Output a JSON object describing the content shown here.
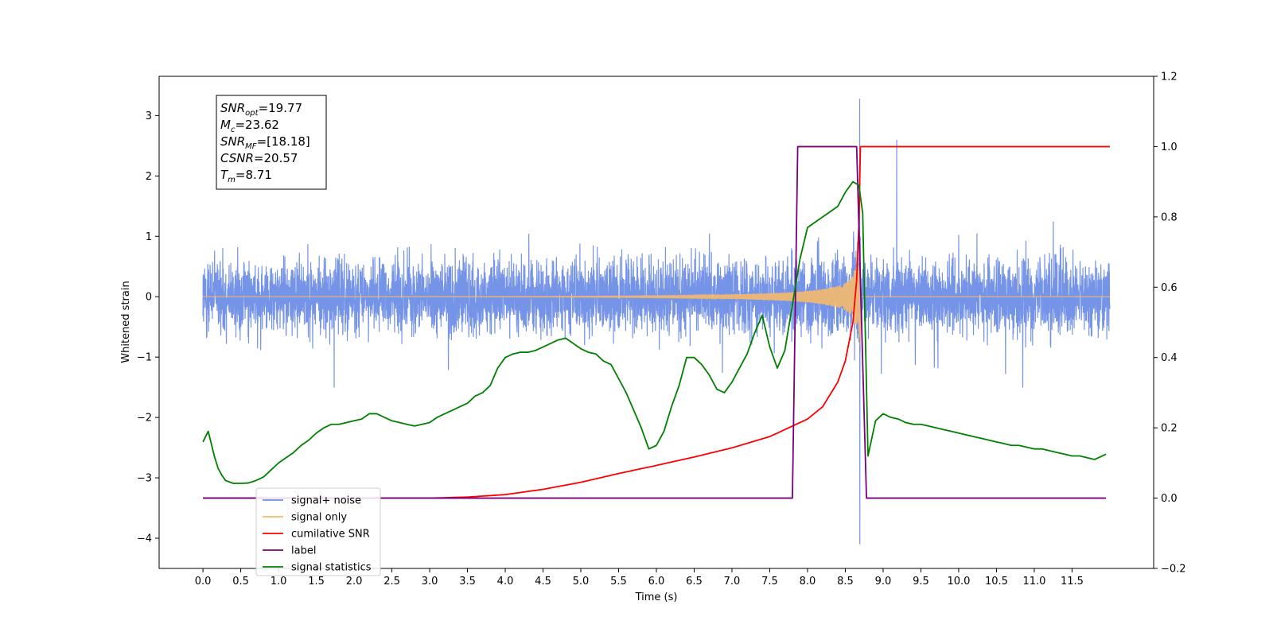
{
  "chart_data": {
    "type": "line",
    "title": "",
    "xlabel": "Time (s)",
    "ylabel": "Whitened strain",
    "xlim": [
      -0.58,
      12.58
    ],
    "ylim": [
      -4.5,
      3.65
    ],
    "y2lim": [
      -0.2,
      1.2
    ],
    "x_ticks": [
      "0.0",
      "0.5",
      "1.0",
      "1.5",
      "2.0",
      "2.5",
      "3.0",
      "3.5",
      "4.0",
      "4.5",
      "5.0",
      "5.5",
      "6.0",
      "6.5",
      "7.0",
      "7.5",
      "8.0",
      "8.5",
      "9.0",
      "9.5",
      "10.0",
      "10.5",
      "11.0",
      "11.5"
    ],
    "y_ticks": [
      "3",
      "2",
      "1",
      "0",
      "−1",
      "−2",
      "−3",
      "−4"
    ],
    "y2_ticks": [
      "1.2",
      "1.0",
      "0.8",
      "0.6",
      "0.4",
      "0.2",
      "0.0",
      "−0.2"
    ],
    "grid": false,
    "legend_position": "lower-left",
    "stats_box": [
      {
        "base": "SNR",
        "sub": "opt",
        "value": "=19.77"
      },
      {
        "base": "M",
        "sub": "c",
        "value": "=23.62"
      },
      {
        "base": "SNR",
        "sub": "MF",
        "value": "=[18.18]"
      },
      {
        "base": "CSNR",
        "sub": "",
        "value": "=20.57"
      },
      {
        "base": "T",
        "sub": "m",
        "value": "=8.71"
      }
    ],
    "series": [
      {
        "name": "signal+ noise",
        "axis": "left",
        "color": "#6f8ee6",
        "description_values": {
          "t_start": 0.0,
          "t_end": 12.0,
          "typical_range": [
            -1.2,
            1.4
          ],
          "max_spike": 3.28,
          "max_spike_t": 8.69,
          "min_spike": -4.1,
          "min_spike_t": 8.69,
          "extra_spike": 2.6,
          "extra_spike_t": 9.18
        }
      },
      {
        "name": "signal only",
        "axis": "left",
        "color": "#f5b96b",
        "description_values": {
          "t_start": 0.0,
          "t_end": 12.0,
          "merger_t": 8.7,
          "peak_amplitude": 1.55
        }
      },
      {
        "name": "cumilative SNR",
        "axis": "right",
        "color": "#ff0000",
        "x": [
          0.0,
          3.0,
          3.5,
          4.0,
          4.5,
          5.0,
          5.5,
          6.0,
          6.5,
          7.0,
          7.5,
          8.0,
          8.2,
          8.4,
          8.5,
          8.6,
          8.65,
          8.68,
          8.7,
          9.0,
          12.0
        ],
        "y": [
          0.0,
          0.0,
          0.003,
          0.01,
          0.025,
          0.045,
          0.07,
          0.093,
          0.117,
          0.143,
          0.175,
          0.225,
          0.26,
          0.33,
          0.39,
          0.5,
          0.62,
          0.78,
          1.0,
          1.0,
          1.0
        ]
      },
      {
        "name": "label",
        "axis": "right",
        "color": "#7a007a",
        "x": [
          0.0,
          7.8,
          7.87,
          8.65,
          8.78,
          11.95
        ],
        "y": [
          0.0,
          0.0,
          1.0,
          1.0,
          0.0,
          0.0
        ]
      },
      {
        "name": "signal statistics",
        "axis": "right",
        "color": "#008000",
        "x": [
          0.0,
          0.07,
          0.15,
          0.2,
          0.25,
          0.3,
          0.4,
          0.5,
          0.6,
          0.7,
          0.8,
          0.9,
          1.0,
          1.1,
          1.2,
          1.3,
          1.4,
          1.5,
          1.6,
          1.7,
          1.8,
          1.9,
          2.0,
          2.1,
          2.2,
          2.3,
          2.4,
          2.5,
          2.6,
          2.7,
          2.8,
          2.9,
          3.0,
          3.1,
          3.2,
          3.3,
          3.4,
          3.5,
          3.6,
          3.7,
          3.8,
          3.9,
          4.0,
          4.1,
          4.2,
          4.3,
          4.4,
          4.5,
          4.6,
          4.7,
          4.8,
          4.9,
          5.0,
          5.1,
          5.2,
          5.3,
          5.4,
          5.5,
          5.6,
          5.7,
          5.8,
          5.9,
          6.0,
          6.1,
          6.2,
          6.3,
          6.4,
          6.5,
          6.6,
          6.7,
          6.8,
          6.9,
          7.0,
          7.1,
          7.2,
          7.3,
          7.4,
          7.5,
          7.6,
          7.7,
          7.8,
          7.9,
          8.0,
          8.1,
          8.2,
          8.3,
          8.4,
          8.5,
          8.6,
          8.68,
          8.73,
          8.8,
          8.9,
          9.0,
          9.1,
          9.2,
          9.3,
          9.4,
          9.5,
          9.6,
          9.7,
          9.8,
          9.9,
          10.0,
          10.1,
          10.2,
          10.3,
          10.4,
          10.5,
          10.6,
          10.7,
          10.8,
          10.9,
          11.0,
          11.1,
          11.2,
          11.3,
          11.4,
          11.5,
          11.6,
          11.7,
          11.8,
          11.95
        ],
        "y": [
          0.16,
          0.19,
          0.12,
          0.085,
          0.065,
          0.05,
          0.042,
          0.042,
          0.043,
          0.05,
          0.06,
          0.08,
          0.1,
          0.115,
          0.13,
          0.15,
          0.165,
          0.185,
          0.2,
          0.21,
          0.21,
          0.215,
          0.22,
          0.225,
          0.24,
          0.24,
          0.23,
          0.22,
          0.215,
          0.21,
          0.205,
          0.21,
          0.215,
          0.23,
          0.24,
          0.25,
          0.26,
          0.27,
          0.29,
          0.3,
          0.32,
          0.37,
          0.4,
          0.41,
          0.415,
          0.415,
          0.42,
          0.43,
          0.44,
          0.45,
          0.455,
          0.44,
          0.425,
          0.415,
          0.41,
          0.39,
          0.38,
          0.34,
          0.3,
          0.25,
          0.2,
          0.14,
          0.15,
          0.19,
          0.26,
          0.32,
          0.4,
          0.4,
          0.38,
          0.35,
          0.31,
          0.3,
          0.33,
          0.37,
          0.41,
          0.47,
          0.52,
          0.43,
          0.37,
          0.42,
          0.55,
          0.68,
          0.77,
          0.785,
          0.8,
          0.815,
          0.83,
          0.87,
          0.9,
          0.89,
          0.81,
          0.12,
          0.22,
          0.24,
          0.23,
          0.225,
          0.215,
          0.21,
          0.21,
          0.205,
          0.2,
          0.195,
          0.19,
          0.185,
          0.18,
          0.175,
          0.17,
          0.165,
          0.16,
          0.155,
          0.15,
          0.15,
          0.145,
          0.14,
          0.14,
          0.135,
          0.13,
          0.125,
          0.12,
          0.12,
          0.115,
          0.11,
          0.125
        ]
      }
    ]
  }
}
